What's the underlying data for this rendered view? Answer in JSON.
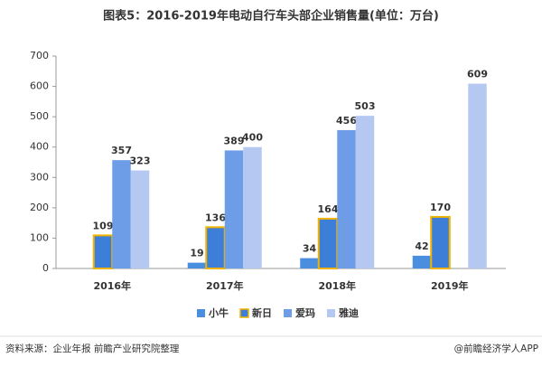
{
  "chart_data": {
    "type": "bar",
    "title": "图表5：2016-2019年电动自行车头部企业销售量(单位：万台)",
    "categories": [
      "2016年",
      "2017年",
      "2018年",
      "2019年"
    ],
    "series": [
      {
        "name": "小牛",
        "color": "#4a8ee0",
        "values": [
          null,
          19,
          34,
          42
        ]
      },
      {
        "name": "新日",
        "color": "#3d7fd8",
        "edgecolor": "#f0b400",
        "values": [
          109,
          136,
          164,
          170
        ]
      },
      {
        "name": "爱玛",
        "color": "#6e9de8",
        "values": [
          357,
          389,
          456,
          null
        ]
      },
      {
        "name": "雅迪",
        "color": "#b5c8f2",
        "values": [
          323,
          400,
          503,
          609
        ]
      }
    ],
    "ylim": [
      0,
      700
    ],
    "yticks": [
      0,
      100,
      200,
      300,
      400,
      500,
      600,
      700
    ],
    "legend": "bottom",
    "source": "资料来源：企业年报 前瞻产业研究院整理",
    "credit": "@前瞻经济学人APP"
  }
}
